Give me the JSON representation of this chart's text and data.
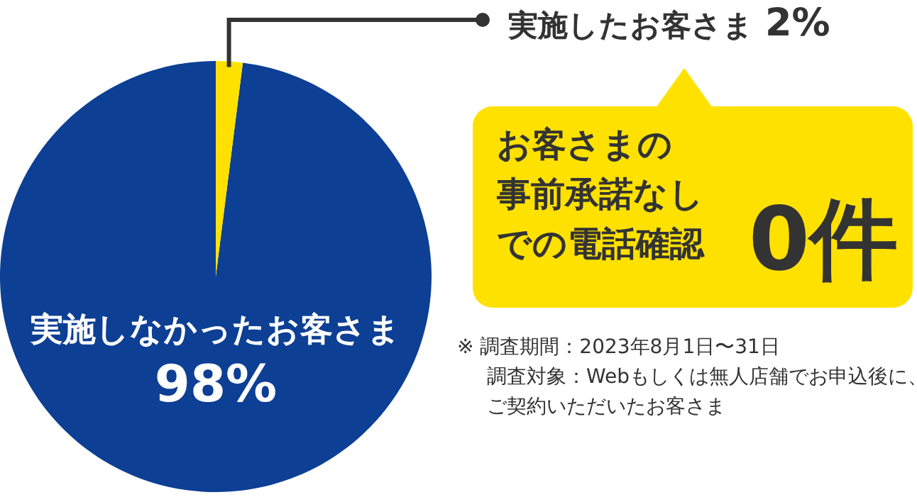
{
  "chart_data": {
    "type": "pie",
    "categories": [
      "実施しなかったお客さま",
      "実施したお客さま"
    ],
    "values": [
      98,
      2
    ],
    "colors": [
      "#0d3f94",
      "#ffe100"
    ],
    "value_labels": [
      "98%",
      "2%"
    ],
    "annotations": [
      "お客さまの",
      "事前承諾なし",
      "での電話確認",
      "0件",
      "※ 調査期間：2023年8月1日〜31日",
      "調査対象：Webもしくは無人店舗でお申込後に、",
      "ご契約いただいたお客さま"
    ]
  }
}
